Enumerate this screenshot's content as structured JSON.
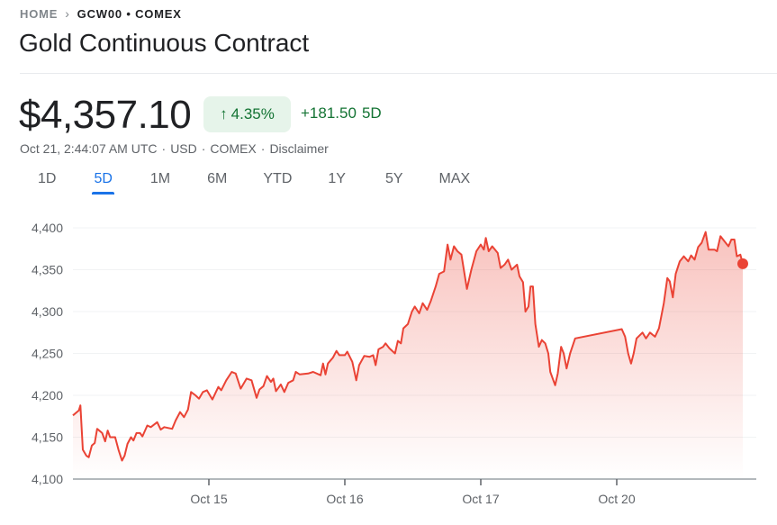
{
  "breadcrumb": {
    "home": "HOME",
    "symbol": "GCW00 • COMEX",
    "chevron_icon": "chevron-right-icon"
  },
  "title": "Gold Continuous Contract",
  "quote": {
    "price": "$4,357.10",
    "change_percent": "4.35%",
    "change_icon": "arrow-up-icon",
    "change_value": "+181.50",
    "change_period": "5D",
    "meta": [
      "Oct 21, 2:44:07 AM UTC",
      "·",
      "USD",
      "·",
      "COMEX",
      "·",
      "Disclaimer"
    ],
    "positive_color": "#137333",
    "positive_bg": "#e6f4ea"
  },
  "tabs": [
    {
      "label": "1D",
      "active": false
    },
    {
      "label": "5D",
      "active": true
    },
    {
      "label": "1M",
      "active": false
    },
    {
      "label": "6M",
      "active": false
    },
    {
      "label": "YTD",
      "active": false
    },
    {
      "label": "1Y",
      "active": false
    },
    {
      "label": "5Y",
      "active": false
    },
    {
      "label": "MAX",
      "active": false
    }
  ],
  "chart_data": {
    "type": "area",
    "line_color": "#ea4335",
    "ylim": [
      4100,
      4400
    ],
    "y_ticks": [
      "4,100",
      "4,150",
      "4,200",
      "4,250",
      "4,300",
      "4,350",
      "4,400"
    ],
    "y_tick_values": [
      4100,
      4150,
      4200,
      4250,
      4300,
      4350,
      4400
    ],
    "x_tick_labels": [
      "Oct 15",
      "Oct 16",
      "Oct 17",
      "Oct 20"
    ],
    "grid": true,
    "days": [
      "Oct 14",
      "Oct 15",
      "Oct 16",
      "Oct 17",
      "Oct 20"
    ],
    "series": {
      "Oct 14": [
        [
          "00:00",
          4176
        ],
        [
          "01:03",
          4182
        ],
        [
          "01:19",
          4188
        ],
        [
          "01:45",
          4135
        ],
        [
          "02:22",
          4128
        ],
        [
          "02:48",
          4126
        ],
        [
          "03:20",
          4140
        ],
        [
          "03:51",
          4143
        ],
        [
          "04:17",
          4160
        ],
        [
          "05:10",
          4155
        ],
        [
          "05:41",
          4145
        ],
        [
          "06:08",
          4158
        ],
        [
          "06:34",
          4150
        ],
        [
          "07:27",
          4150
        ],
        [
          "08:03",
          4135
        ],
        [
          "08:40",
          4122
        ],
        [
          "09:07",
          4128
        ],
        [
          "09:38",
          4142
        ],
        [
          "10:15",
          4150
        ],
        [
          "10:41",
          4146
        ],
        [
          "11:13",
          4155
        ],
        [
          "11:50",
          4155
        ],
        [
          "12:16",
          4151
        ],
        [
          "13:08",
          4164
        ],
        [
          "13:45",
          4162
        ],
        [
          "14:53",
          4168
        ],
        [
          "15:30",
          4159
        ],
        [
          "16:07",
          4162
        ],
        [
          "17:31",
          4160
        ],
        [
          "18:08",
          4170
        ],
        [
          "18:55",
          4180
        ],
        [
          "19:37",
          4174
        ],
        [
          "20:19",
          4183
        ],
        [
          "20:51",
          4204
        ],
        [
          "21:38",
          4200
        ],
        [
          "22:15",
          4196
        ],
        [
          "22:57",
          4204
        ],
        [
          "23:39",
          4206
        ]
      ],
      "Oct 15": [
        [
          "00:37",
          4195
        ],
        [
          "01:40",
          4210
        ],
        [
          "02:11",
          4206
        ],
        [
          "03:04",
          4218
        ],
        [
          "04:02",
          4228
        ],
        [
          "04:44",
          4226
        ],
        [
          "05:37",
          4208
        ],
        [
          "06:40",
          4220
        ],
        [
          "07:32",
          4218
        ],
        [
          "08:25",
          4197
        ],
        [
          "08:56",
          4207
        ],
        [
          "09:38",
          4211
        ],
        [
          "10:15",
          4223
        ],
        [
          "10:57",
          4216
        ],
        [
          "11:23",
          4220
        ],
        [
          "11:50",
          4205
        ],
        [
          "12:42",
          4213
        ],
        [
          "13:19",
          4204
        ],
        [
          "14:01",
          4215
        ],
        [
          "14:53",
          4218
        ],
        [
          "15:20",
          4228
        ],
        [
          "16:02",
          4225
        ],
        [
          "17:31",
          4226
        ],
        [
          "18:24",
          4228
        ],
        [
          "19:43",
          4224
        ],
        [
          "20:09",
          4238
        ],
        [
          "20:35",
          4225
        ],
        [
          "21:01",
          4238
        ],
        [
          "21:54",
          4245
        ],
        [
          "22:31",
          4253
        ],
        [
          "23:02",
          4248
        ]
      ],
      "Oct 16": [
        [
          "00:00",
          4248
        ],
        [
          "00:26",
          4252
        ],
        [
          "01:19",
          4240
        ],
        [
          "02:01",
          4218
        ],
        [
          "02:32",
          4236
        ],
        [
          "03:25",
          4247
        ],
        [
          "04:23",
          4246
        ],
        [
          "05:00",
          4248
        ],
        [
          "05:26",
          4236
        ],
        [
          "05:57",
          4255
        ],
        [
          "06:45",
          4258
        ],
        [
          "07:11",
          4262
        ],
        [
          "07:53",
          4256
        ],
        [
          "08:51",
          4250
        ],
        [
          "09:22",
          4265
        ],
        [
          "09:54",
          4262
        ],
        [
          "10:20",
          4280
        ],
        [
          "11:08",
          4285
        ],
        [
          "11:50",
          4300
        ],
        [
          "12:21",
          4306
        ],
        [
          "13:08",
          4298
        ],
        [
          "13:45",
          4310
        ],
        [
          "14:32",
          4302
        ],
        [
          "15:09",
          4312
        ],
        [
          "16:02",
          4330
        ],
        [
          "16:39",
          4345
        ],
        [
          "17:31",
          4348
        ],
        [
          "18:08",
          4380
        ],
        [
          "18:40",
          4362
        ],
        [
          "19:16",
          4378
        ],
        [
          "19:53",
          4372
        ],
        [
          "20:35",
          4368
        ],
        [
          "21:33",
          4327
        ],
        [
          "22:20",
          4350
        ],
        [
          "23:13",
          4372
        ]
      ],
      "Oct 17": [
        [
          "00:00",
          4380
        ],
        [
          "00:32",
          4374
        ],
        [
          "00:53",
          4388
        ],
        [
          "01:24",
          4372
        ],
        [
          "02:01",
          4378
        ],
        [
          "02:59",
          4370
        ],
        [
          "03:30",
          4352
        ],
        [
          "04:12",
          4356
        ],
        [
          "04:49",
          4362
        ],
        [
          "05:26",
          4350
        ],
        [
          "06:24",
          4356
        ],
        [
          "06:50",
          4342
        ],
        [
          "07:27",
          4335
        ],
        [
          "07:53",
          4300
        ],
        [
          "08:25",
          4306
        ],
        [
          "08:46",
          4330
        ],
        [
          "09:12",
          4330
        ],
        [
          "09:38",
          4285
        ],
        [
          "10:15",
          4258
        ],
        [
          "10:47",
          4266
        ],
        [
          "11:23",
          4262
        ],
        [
          "11:55",
          4250
        ],
        [
          "12:16",
          4228
        ],
        [
          "13:08",
          4212
        ],
        [
          "13:35",
          4226
        ],
        [
          "14:11",
          4258
        ],
        [
          "14:38",
          4250
        ],
        [
          "15:09",
          4232
        ],
        [
          "15:46",
          4250
        ],
        [
          "16:39",
          4268
        ]
      ],
      "Oct 20": [
        [
          "00:53",
          4279
        ],
        [
          "01:29",
          4270
        ],
        [
          "02:01",
          4250
        ],
        [
          "02:32",
          4238
        ],
        [
          "02:59",
          4250
        ],
        [
          "03:30",
          4268
        ],
        [
          "04:33",
          4275
        ],
        [
          "05:10",
          4268
        ],
        [
          "05:52",
          4275
        ],
        [
          "06:45",
          4270
        ],
        [
          "07:27",
          4280
        ],
        [
          "08:19",
          4310
        ],
        [
          "08:56",
          4340
        ],
        [
          "09:22",
          4336
        ],
        [
          "09:54",
          4317
        ],
        [
          "10:25",
          4345
        ],
        [
          "11:08",
          4360
        ],
        [
          "11:50",
          4366
        ],
        [
          "12:37",
          4360
        ],
        [
          "13:08",
          4367
        ],
        [
          "13:45",
          4362
        ],
        [
          "14:22",
          4377
        ],
        [
          "14:59",
          4382
        ],
        [
          "15:41",
          4395
        ],
        [
          "16:13",
          4374
        ],
        [
          "17:16",
          4374
        ],
        [
          "17:42",
          4372
        ],
        [
          "18:19",
          4390
        ],
        [
          "19:01",
          4384
        ],
        [
          "19:43",
          4378
        ],
        [
          "20:14",
          4386
        ],
        [
          "20:46",
          4386
        ],
        [
          "21:12",
          4366
        ],
        [
          "21:49",
          4368
        ],
        [
          "22:15",
          4357
        ]
      ]
    },
    "last_value": 4357.1
  }
}
